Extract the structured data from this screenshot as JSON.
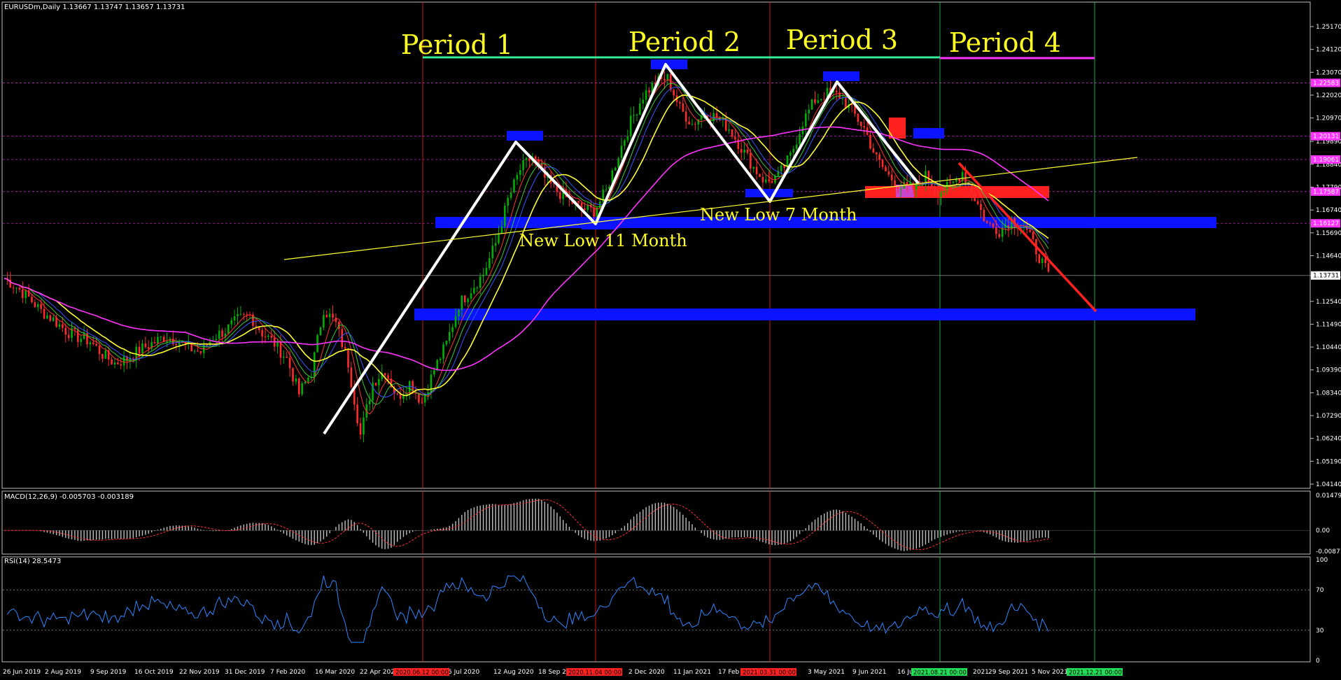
{
  "window": {
    "header": "EURUSDm,Daily  1.13667 1.13747 1.13657 1.13731"
  },
  "colors": {
    "background": "#000000",
    "frame": "#c0c0c0",
    "bull": "#00b000",
    "bear": "#ff2a2a",
    "ma_slow": "#ff33ff",
    "ma_yellow": "#ffff33",
    "ma_blue": "#3355ff",
    "zone": "#0a14ff",
    "zone_red": "#ff2020",
    "period_green": "#33ee99",
    "period_magenta": "#ff33ff",
    "label_yellow": "#ffff22",
    "rsi": "#2f86ff",
    "macd_hist": "#bfbfbf",
    "macd_signal": "#ff3030"
  },
  "chart_data": {
    "type": "candlestick",
    "symbol": "EURUSDm",
    "timeframe": "Daily",
    "ohlc_last": {
      "open": 1.13667,
      "high": 1.13747,
      "low": 1.13657,
      "close": 1.13731
    },
    "price_axis": {
      "ylim": [
        1.0414,
        1.2517
      ],
      "ticks": [
        "1.25170",
        "1.24120",
        "1.23070",
        "1.22020",
        "1.20970",
        "1.19890",
        "1.18840",
        "1.17790",
        "1.16740",
        "1.15690",
        "1.14640",
        "1.13731",
        "1.12540",
        "1.11490",
        "1.10440",
        "1.09390",
        "1.08340",
        "1.07290",
        "1.06240",
        "1.05190",
        "1.04140"
      ]
    },
    "price_level_labels": [
      {
        "value": 1.22583,
        "label": "1.22583",
        "color": "#ff33ff"
      },
      {
        "value": 1.20131,
        "label": "1.20131",
        "color": "#ff33ff"
      },
      {
        "value": 1.19061,
        "label": "1.19061",
        "color": "#ff33ff"
      },
      {
        "value": 1.17587,
        "label": "1.17587",
        "color": "#ff33ff"
      },
      {
        "value": 1.16127,
        "label": "1.16127",
        "color": "#ff33ff"
      },
      {
        "value": 1.13731,
        "label": "1.13731",
        "color": "#ffffff"
      }
    ],
    "date_axis": [
      "26 Jun 2019",
      "2 Aug 2019",
      "9 Sep 2019",
      "16 Oct 2019",
      "22 Nov 2019",
      "31 Dec 2019",
      "7 Feb 2020",
      "16 Mar 2020",
      "22 Apr 2020",
      "5 Jul 2020",
      "12 Aug 2020",
      "18 Sep 20",
      "2 Dec 2020",
      "11 Jan 2021",
      "17 Feb",
      "3 May 2021",
      "9 Jun 2021",
      "16 Ju",
      "2021",
      "29 Sep 2021",
      "5 Nov 2021"
    ],
    "date_markers": [
      {
        "label": "2020.06.12 00:00",
        "color": "#ff2020"
      },
      {
        "label": "2020.11.04 00:00",
        "color": "#ff2020"
      },
      {
        "label": "2021.03.31 00:00",
        "color": "#ff2020"
      },
      {
        "label": "2021.08.21 00:00",
        "color": "#22dd55"
      },
      {
        "label": "2021.12.21 00:00",
        "color": "#22dd55"
      }
    ],
    "periods": [
      "Period 1",
      "Period 2",
      "Period 3",
      "Period 4"
    ],
    "annotations": [
      "New Low 11 Month",
      "New Low 7 Month"
    ],
    "close_series": [
      1.136,
      1.132,
      1.127,
      1.121,
      1.117,
      1.112,
      1.109,
      1.107,
      1.101,
      1.097,
      1.099,
      1.103,
      1.106,
      1.109,
      1.108,
      1.104,
      1.102,
      1.109,
      1.112,
      1.117,
      1.119,
      1.111,
      1.106,
      1.099,
      1.083,
      1.093,
      1.122,
      1.115,
      1.097,
      1.064,
      1.088,
      1.094,
      1.081,
      1.088,
      1.079,
      1.094,
      1.106,
      1.124,
      1.131,
      1.138,
      1.152,
      1.172,
      1.186,
      1.192,
      1.182,
      1.176,
      1.172,
      1.168,
      1.167,
      1.176,
      1.193,
      1.208,
      1.22,
      1.226,
      1.228,
      1.214,
      1.207,
      1.212,
      1.21,
      1.205,
      1.196,
      1.187,
      1.18,
      1.183,
      1.192,
      1.208,
      1.218,
      1.221,
      1.22,
      1.213,
      1.205,
      1.191,
      1.183,
      1.178,
      1.177,
      1.183,
      1.176,
      1.178,
      1.185,
      1.173,
      1.161,
      1.158,
      1.163,
      1.16,
      1.149,
      1.137
    ],
    "macd": {
      "label": "MACD(12,26,9) -0.005703 -0.003189",
      "ylim": [
        -0.008775,
        0.014792
      ],
      "ticks": [
        "0.014792",
        "0.00",
        "-0.008775"
      ],
      "main": -0.005703,
      "signal": -0.003189
    },
    "rsi": {
      "label": "RSI(14) 28.5473",
      "ylim": [
        0,
        100
      ],
      "ticks": [
        "100",
        "70",
        "30",
        "0"
      ],
      "levels": [
        70,
        30
      ],
      "value": 28.5473
    }
  }
}
